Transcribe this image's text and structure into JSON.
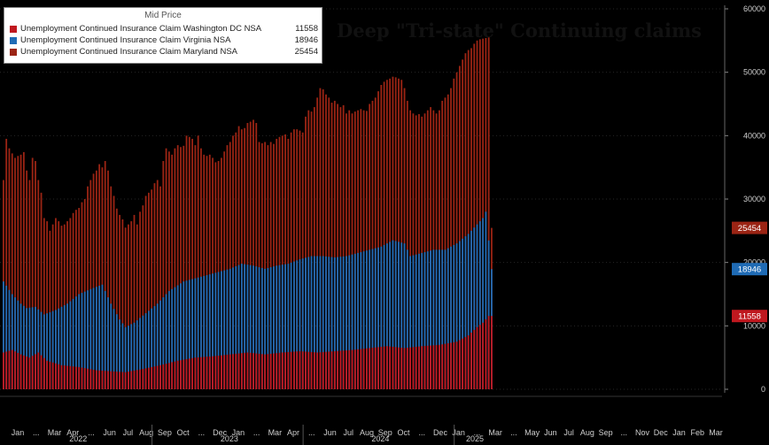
{
  "chart_data": {
    "type": "bar",
    "stacked": false,
    "title": "Deep \"Tri-state\" Continuing claims",
    "legend_header": "Mid Price",
    "ylim": [
      0,
      60000
    ],
    "y_ticks": [
      "0",
      "10000",
      "20000",
      "30000",
      "40000",
      "50000",
      "60000"
    ],
    "x_ticks": [
      "Jan",
      "...",
      "Mar",
      "Apr",
      "...",
      "Jun",
      "Jul",
      "Aug",
      "Sep",
      "Oct",
      "...",
      "Dec",
      "Jan",
      "...",
      "Mar",
      "Apr",
      "...",
      "Jun",
      "Jul",
      "Aug",
      "Sep",
      "Oct",
      "...",
      "Dec",
      "Jan",
      "...",
      "Mar",
      "...",
      "May",
      "Jun",
      "Jul",
      "Aug",
      "Sep",
      "...",
      "Nov",
      "Dec",
      "Jan",
      "Feb",
      "Mar"
    ],
    "x_years": [
      "2022",
      "2023",
      "2024",
      "2025"
    ],
    "weeks_per_year": 52,
    "series": [
      {
        "name": "Unemployment Continued Insurance Claim Maryland NSA",
        "last_value": "25454",
        "color": "#9b2414",
        "anchors": [
          [
            0,
            33000
          ],
          [
            1,
            39500
          ],
          [
            2,
            38000
          ],
          [
            3,
            37200
          ],
          [
            4,
            36500
          ],
          [
            5,
            36800
          ],
          [
            6,
            37000
          ],
          [
            7,
            37400
          ],
          [
            8,
            34500
          ],
          [
            9,
            33000
          ],
          [
            10,
            36500
          ],
          [
            11,
            36000
          ],
          [
            12,
            33000
          ],
          [
            13,
            31000
          ],
          [
            14,
            27000
          ],
          [
            15,
            26500
          ],
          [
            16,
            25000
          ],
          [
            17,
            26000
          ],
          [
            18,
            27000
          ],
          [
            19,
            26500
          ],
          [
            20,
            25800
          ],
          [
            21,
            26000
          ],
          [
            22,
            26500
          ],
          [
            23,
            27000
          ],
          [
            24,
            27800
          ],
          [
            25,
            28300
          ],
          [
            26,
            28600
          ],
          [
            27,
            29500
          ],
          [
            28,
            30000
          ],
          [
            29,
            32000
          ],
          [
            30,
            33000
          ],
          [
            31,
            34000
          ],
          [
            32,
            34500
          ],
          [
            33,
            35500
          ],
          [
            34,
            35000
          ],
          [
            35,
            36000
          ],
          [
            36,
            34500
          ],
          [
            37,
            32000
          ],
          [
            38,
            30500
          ],
          [
            39,
            28500
          ],
          [
            40,
            27500
          ],
          [
            41,
            26800
          ],
          [
            42,
            25500
          ],
          [
            43,
            26000
          ],
          [
            44,
            26500
          ],
          [
            45,
            27500
          ],
          [
            46,
            26000
          ],
          [
            47,
            28000
          ],
          [
            48,
            29000
          ],
          [
            49,
            30500
          ],
          [
            50,
            31000
          ],
          [
            51,
            31500
          ],
          [
            52,
            32500
          ],
          [
            53,
            33000
          ],
          [
            54,
            32000
          ],
          [
            55,
            36000
          ],
          [
            56,
            38000
          ],
          [
            57,
            37500
          ],
          [
            58,
            37000
          ],
          [
            59,
            38000
          ],
          [
            60,
            38500
          ],
          [
            61,
            38200
          ],
          [
            62,
            38400
          ],
          [
            63,
            40000
          ],
          [
            64,
            39800
          ],
          [
            65,
            39500
          ],
          [
            66,
            38500
          ],
          [
            67,
            40000
          ],
          [
            68,
            38000
          ],
          [
            69,
            37000
          ],
          [
            70,
            36800
          ],
          [
            71,
            37000
          ],
          [
            72,
            36500
          ],
          [
            73,
            35800
          ],
          [
            74,
            36000
          ],
          [
            75,
            36500
          ],
          [
            76,
            37500
          ],
          [
            77,
            38500
          ],
          [
            78,
            39000
          ],
          [
            79,
            40000
          ],
          [
            80,
            40500
          ],
          [
            81,
            41500
          ],
          [
            82,
            41000
          ],
          [
            83,
            41200
          ],
          [
            84,
            42000
          ],
          [
            85,
            42200
          ],
          [
            86,
            42500
          ],
          [
            87,
            42000
          ],
          [
            88,
            39000
          ],
          [
            89,
            38800
          ],
          [
            90,
            39000
          ],
          [
            91,
            38500
          ],
          [
            92,
            39000
          ],
          [
            93,
            38700
          ],
          [
            94,
            39500
          ],
          [
            95,
            39800
          ],
          [
            96,
            40000
          ],
          [
            97,
            40200
          ],
          [
            98,
            39500
          ],
          [
            99,
            40500
          ],
          [
            100,
            41000
          ],
          [
            101,
            41000
          ],
          [
            102,
            40800
          ],
          [
            103,
            40500
          ],
          [
            104,
            43000
          ],
          [
            105,
            44000
          ],
          [
            106,
            43800
          ],
          [
            107,
            44500
          ],
          [
            108,
            46000
          ],
          [
            109,
            47500
          ],
          [
            110,
            47300
          ],
          [
            111,
            46500
          ],
          [
            112,
            46000
          ],
          [
            113,
            45200
          ],
          [
            114,
            45500
          ],
          [
            115,
            45000
          ],
          [
            116,
            44500
          ],
          [
            117,
            44800
          ],
          [
            118,
            43500
          ],
          [
            119,
            44000
          ],
          [
            120,
            43500
          ],
          [
            121,
            43800
          ],
          [
            122,
            44000
          ],
          [
            123,
            44200
          ],
          [
            124,
            44000
          ],
          [
            125,
            43900
          ],
          [
            126,
            45000
          ],
          [
            127,
            45500
          ],
          [
            128,
            46000
          ],
          [
            129,
            47000
          ],
          [
            130,
            48000
          ],
          [
            131,
            48500
          ],
          [
            132,
            48800
          ],
          [
            133,
            49000
          ],
          [
            134,
            49300
          ],
          [
            135,
            49200
          ],
          [
            136,
            49000
          ],
          [
            137,
            48800
          ],
          [
            138,
            47500
          ],
          [
            139,
            45500
          ],
          [
            140,
            44000
          ],
          [
            141,
            43500
          ],
          [
            142,
            43200
          ],
          [
            143,
            43400
          ],
          [
            144,
            43000
          ],
          [
            145,
            43500
          ],
          [
            146,
            44000
          ],
          [
            147,
            44500
          ],
          [
            148,
            44000
          ],
          [
            149,
            43500
          ],
          [
            150,
            44000
          ],
          [
            151,
            45500
          ],
          [
            152,
            46000
          ],
          [
            153,
            46500
          ],
          [
            154,
            47500
          ],
          [
            155,
            49000
          ],
          [
            156,
            50000
          ],
          [
            157,
            51000
          ],
          [
            158,
            52000
          ],
          [
            159,
            53000
          ],
          [
            160,
            53500
          ],
          [
            161,
            53800
          ],
          [
            162,
            54500
          ],
          [
            163,
            55000
          ],
          [
            164,
            55200
          ],
          [
            165,
            55300
          ],
          [
            166,
            55400
          ],
          [
            167,
            55500
          ],
          [
            168,
            25454
          ]
        ]
      },
      {
        "name": "Unemployment Continued Insurance Claim Virginia NSA",
        "last_value": "18946",
        "color": "#1f6bb5",
        "anchors": [
          [
            0,
            17000
          ],
          [
            3,
            15000
          ],
          [
            6,
            13500
          ],
          [
            8,
            12800
          ],
          [
            11,
            13000
          ],
          [
            14,
            11800
          ],
          [
            18,
            12500
          ],
          [
            22,
            13500
          ],
          [
            26,
            15000
          ],
          [
            30,
            15800
          ],
          [
            34,
            16500
          ],
          [
            37,
            13500
          ],
          [
            40,
            11000
          ],
          [
            42,
            9800
          ],
          [
            45,
            10500
          ],
          [
            49,
            12000
          ],
          [
            53,
            13500
          ],
          [
            57,
            15500
          ],
          [
            62,
            17000
          ],
          [
            66,
            17500
          ],
          [
            70,
            18000
          ],
          [
            74,
            18500
          ],
          [
            78,
            19000
          ],
          [
            82,
            19800
          ],
          [
            86,
            19500
          ],
          [
            90,
            19000
          ],
          [
            94,
            19500
          ],
          [
            98,
            19800
          ],
          [
            102,
            20500
          ],
          [
            106,
            21000
          ],
          [
            110,
            21000
          ],
          [
            114,
            20800
          ],
          [
            118,
            21000
          ],
          [
            122,
            21500
          ],
          [
            126,
            22000
          ],
          [
            130,
            22500
          ],
          [
            134,
            23500
          ],
          [
            138,
            23000
          ],
          [
            140,
            21000
          ],
          [
            144,
            21500
          ],
          [
            148,
            22000
          ],
          [
            152,
            22000
          ],
          [
            156,
            23000
          ],
          [
            160,
            24500
          ],
          [
            163,
            26000
          ],
          [
            165,
            27000
          ],
          [
            166,
            28000
          ],
          [
            168,
            18946
          ]
        ]
      },
      {
        "name": "Unemployment Continued Insurance Claim Washington DC NSA",
        "last_value": "11558",
        "color": "#c0181f",
        "anchors": [
          [
            0,
            5800
          ],
          [
            3,
            6200
          ],
          [
            6,
            5500
          ],
          [
            9,
            5000
          ],
          [
            12,
            5800
          ],
          [
            15,
            4500
          ],
          [
            20,
            3800
          ],
          [
            26,
            3500
          ],
          [
            32,
            3000
          ],
          [
            38,
            2800
          ],
          [
            42,
            2700
          ],
          [
            48,
            3200
          ],
          [
            54,
            3800
          ],
          [
            60,
            4500
          ],
          [
            66,
            5000
          ],
          [
            72,
            5200
          ],
          [
            78,
            5500
          ],
          [
            84,
            5800
          ],
          [
            90,
            5500
          ],
          [
            96,
            5800
          ],
          [
            102,
            6000
          ],
          [
            108,
            5800
          ],
          [
            114,
            6000
          ],
          [
            120,
            6200
          ],
          [
            126,
            6500
          ],
          [
            132,
            6800
          ],
          [
            138,
            6500
          ],
          [
            144,
            6800
          ],
          [
            150,
            7000
          ],
          [
            156,
            7500
          ],
          [
            160,
            8500
          ],
          [
            163,
            9800
          ],
          [
            165,
            10500
          ],
          [
            167,
            11558
          ],
          [
            168,
            11558
          ]
        ]
      }
    ]
  }
}
